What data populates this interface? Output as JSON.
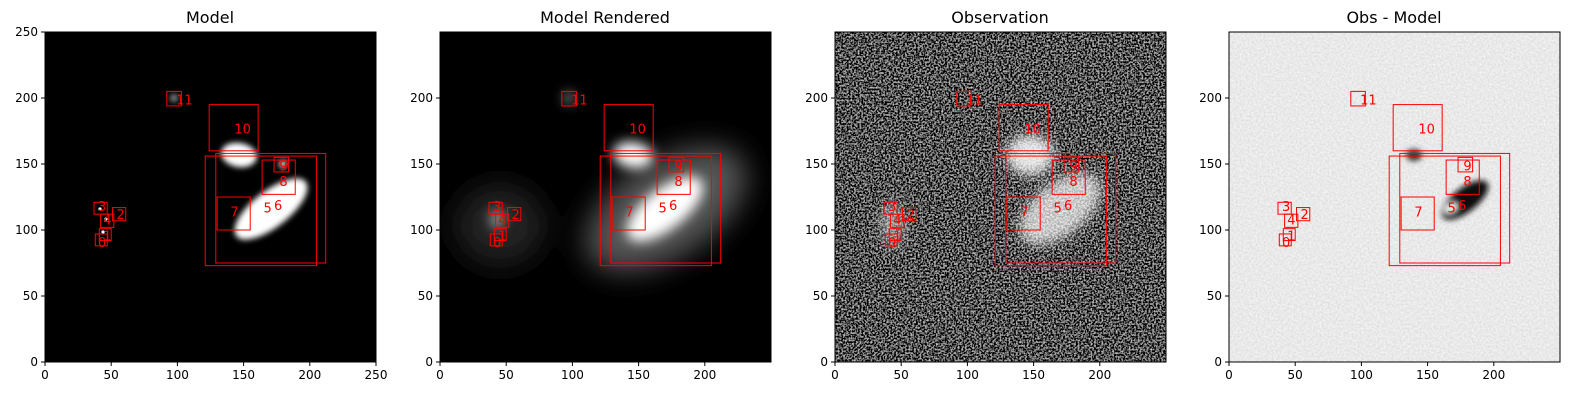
{
  "chart_data": [
    {
      "type": "image",
      "title": "Model",
      "xlim": [
        0,
        250
      ],
      "ylim": [
        0,
        250
      ],
      "xticks": [
        0,
        50,
        100,
        150,
        200,
        250
      ],
      "yticks": [
        0,
        50,
        100,
        150,
        200,
        250
      ],
      "background": "black",
      "sources": [
        {
          "x": 148,
          "y": 178,
          "rx": 14,
          "ry": 9,
          "angle": -10
        },
        {
          "x": 178,
          "y": 112,
          "rx": 30,
          "ry": 14,
          "angle": 38
        },
        {
          "x": 178,
          "y": 145,
          "rx": 4,
          "ry": 4,
          "angle": 0
        },
        {
          "x": 97,
          "y": 199,
          "rx": 4,
          "ry": 4,
          "angle": 0
        },
        {
          "x": 42,
          "y": 114,
          "rx": 2,
          "ry": 2,
          "angle": 0
        },
        {
          "x": 46,
          "y": 106,
          "rx": 2,
          "ry": 2,
          "angle": 0
        },
        {
          "x": 44,
          "y": 96,
          "rx": 2,
          "ry": 2,
          "angle": 0
        }
      ]
    },
    {
      "type": "image",
      "title": "Model Rendered",
      "xlim": [
        0,
        250
      ],
      "ylim": [
        0,
        250
      ],
      "xticks": [
        0,
        50,
        100,
        150,
        200
      ],
      "yticks": [
        0,
        50,
        100,
        150,
        200
      ],
      "background": "black"
    },
    {
      "type": "image",
      "title": "Observation",
      "xlim": [
        0,
        250
      ],
      "ylim": [
        0,
        250
      ],
      "xticks": [
        0,
        50,
        100,
        150,
        200
      ],
      "yticks": [
        0,
        50,
        100,
        150,
        200
      ],
      "background": "noise"
    },
    {
      "type": "image",
      "title": "Obs - Model",
      "xlim": [
        0,
        250
      ],
      "ylim": [
        0,
        250
      ],
      "xticks": [
        0,
        50,
        100,
        150,
        200
      ],
      "yticks": [
        0,
        50,
        100,
        150,
        200
      ],
      "background": "residual"
    }
  ],
  "boxes": [
    {
      "id": "0",
      "x0": 38,
      "y0": 88,
      "x1": 47,
      "y1": 97,
      "lx": 40,
      "ly": 91
    },
    {
      "id": "1",
      "x0": 41,
      "y0": 92,
      "x1": 50,
      "y1": 101,
      "lx": 44,
      "ly": 96
    },
    {
      "id": "2",
      "x0": 51,
      "y0": 107,
      "x1": 61,
      "y1": 117,
      "lx": 54,
      "ly": 112
    },
    {
      "id": "3",
      "x0": 37,
      "y0": 112,
      "x1": 47,
      "y1": 121,
      "lx": 40,
      "ly": 118
    },
    {
      "id": "4",
      "x0": 42,
      "y0": 102,
      "x1": 52,
      "y1": 112,
      "lx": 44,
      "ly": 108
    },
    {
      "id": "5",
      "x0": 121,
      "y0": 73,
      "x1": 205,
      "y1": 156,
      "lx": 165,
      "ly": 117
    },
    {
      "id": "6",
      "x0": 129,
      "y0": 75,
      "x1": 212,
      "y1": 158,
      "lx": 173,
      "ly": 119
    },
    {
      "id": "7",
      "x0": 130,
      "y0": 100,
      "x1": 155,
      "y1": 125,
      "lx": 140,
      "ly": 114
    },
    {
      "id": "8",
      "x0": 164,
      "y0": 127,
      "x1": 189,
      "y1": 153,
      "lx": 177,
      "ly": 137
    },
    {
      "id": "9",
      "x0": 173,
      "y0": 144,
      "x1": 184,
      "y1": 155,
      "lx": 177,
      "ly": 149
    },
    {
      "id": "10",
      "x0": 124,
      "y0": 160,
      "x1": 161,
      "y1": 195,
      "lx": 143,
      "ly": 177
    },
    {
      "id": "11",
      "x0": 92,
      "y0": 194,
      "x1": 103,
      "y1": 205,
      "lx": 99,
      "ly": 199
    }
  ],
  "colors": {
    "box": "#ff0000",
    "axis": "#000000"
  }
}
